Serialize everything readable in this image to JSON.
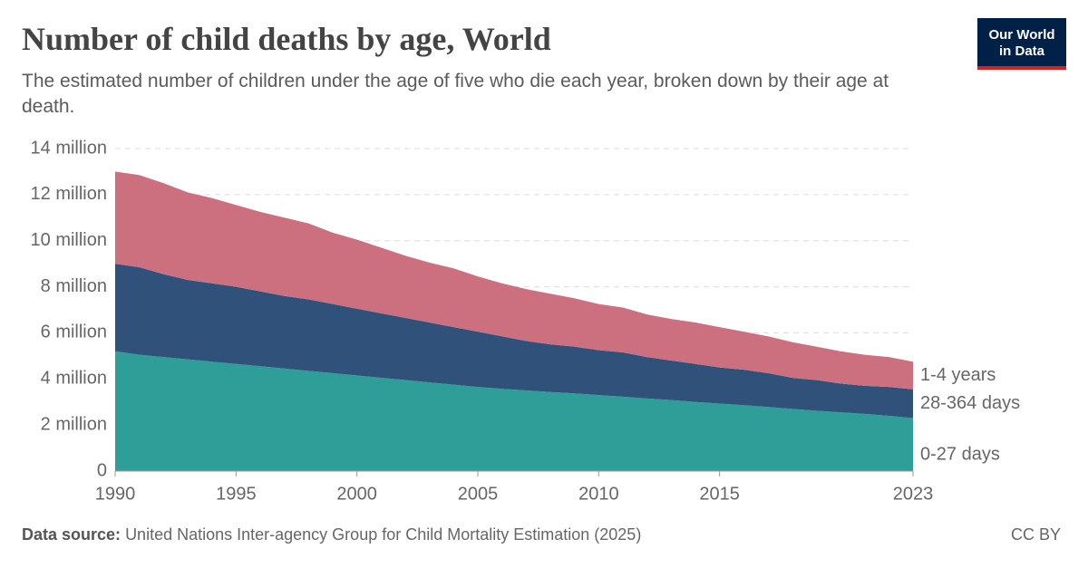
{
  "chart_data": {
    "type": "stacked-area",
    "title": "Number of child deaths by age, World",
    "subtitle": "The estimated number of children under the age of five who die each year, broken down by their age at death.",
    "logo": "Our World in Data",
    "source_label": "Data source:",
    "source": "United Nations Inter-agency Group for Child Mortality Estimation (2025)",
    "license": "CC BY",
    "x": [
      1990,
      1991,
      1992,
      1993,
      1994,
      1995,
      1996,
      1997,
      1998,
      1999,
      2000,
      2001,
      2002,
      2003,
      2004,
      2005,
      2006,
      2007,
      2008,
      2009,
      2010,
      2011,
      2012,
      2013,
      2014,
      2015,
      2016,
      2017,
      2018,
      2019,
      2020,
      2021,
      2022,
      2023
    ],
    "xlim": [
      1990,
      2023
    ],
    "xticks": [
      1990,
      1995,
      2000,
      2005,
      2010,
      2015,
      2023
    ],
    "ylim": [
      0,
      14000000
    ],
    "yticks": [
      0,
      {
        "value": 2000000,
        "label": "2 million"
      },
      {
        "value": 4000000,
        "label": "4 million"
      },
      {
        "value": 6000000,
        "label": "6 million"
      },
      {
        "value": 8000000,
        "label": "8 million"
      },
      {
        "value": 10000000,
        "label": "10 million"
      },
      {
        "value": 12000000,
        "label": "12 million"
      },
      {
        "value": 14000000,
        "label": "14 million"
      }
    ],
    "grid": true,
    "series": [
      {
        "name": "0-27 days",
        "color": "#2f9e98",
        "values": [
          5200000,
          5050000,
          4950000,
          4850000,
          4750000,
          4650000,
          4550000,
          4450000,
          4350000,
          4250000,
          4150000,
          4050000,
          3950000,
          3850000,
          3750000,
          3650000,
          3570000,
          3500000,
          3430000,
          3370000,
          3300000,
          3230000,
          3150000,
          3080000,
          3000000,
          2930000,
          2860000,
          2780000,
          2700000,
          2620000,
          2550000,
          2480000,
          2400000,
          2300000
        ]
      },
      {
        "name": "28-364 days",
        "color": "#30527a",
        "values": [
          3800000,
          3800000,
          3600000,
          3450000,
          3400000,
          3350000,
          3250000,
          3150000,
          3100000,
          3000000,
          2900000,
          2800000,
          2700000,
          2600000,
          2500000,
          2400000,
          2280000,
          2150000,
          2070000,
          2030000,
          1950000,
          1920000,
          1800000,
          1720000,
          1650000,
          1570000,
          1540000,
          1470000,
          1350000,
          1330000,
          1250000,
          1220000,
          1250000,
          1250000
        ]
      },
      {
        "name": "1-4 years",
        "color": "#cc707f",
        "values": [
          4000000,
          4000000,
          3950000,
          3800000,
          3700000,
          3550000,
          3450000,
          3400000,
          3300000,
          3100000,
          3000000,
          2850000,
          2700000,
          2600000,
          2550000,
          2400000,
          2300000,
          2250000,
          2200000,
          2100000,
          2000000,
          1950000,
          1850000,
          1800000,
          1800000,
          1750000,
          1650000,
          1600000,
          1550000,
          1450000,
          1400000,
          1350000,
          1300000,
          1200000
        ]
      }
    ]
  }
}
